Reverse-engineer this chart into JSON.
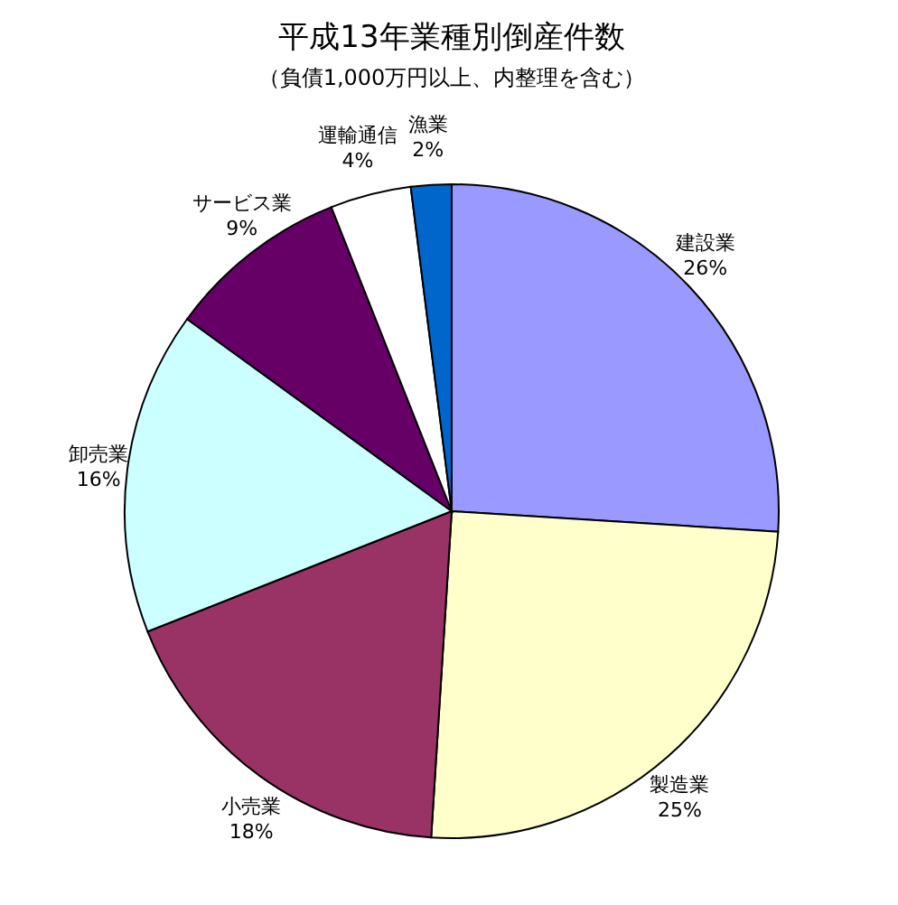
{
  "chart_data": {
    "type": "pie",
    "title": "平成13年業種別倒産件数",
    "subtitle": "（負債1,000万円以上、内整理を含む）",
    "categories": [
      "建設業",
      "製造業",
      "小売業",
      "卸売業",
      "サービス業",
      "運輸通信",
      "漁業"
    ],
    "values": [
      26,
      25,
      18,
      16,
      9,
      4,
      2
    ],
    "value_labels": [
      "26%",
      "25%",
      "18%",
      "16%",
      "9%",
      "4%",
      "2%"
    ],
    "colors": [
      "#9999ff",
      "#ffffcc",
      "#993366",
      "#ccffff",
      "#660066",
      "#ffffff",
      "#0066cc"
    ]
  }
}
